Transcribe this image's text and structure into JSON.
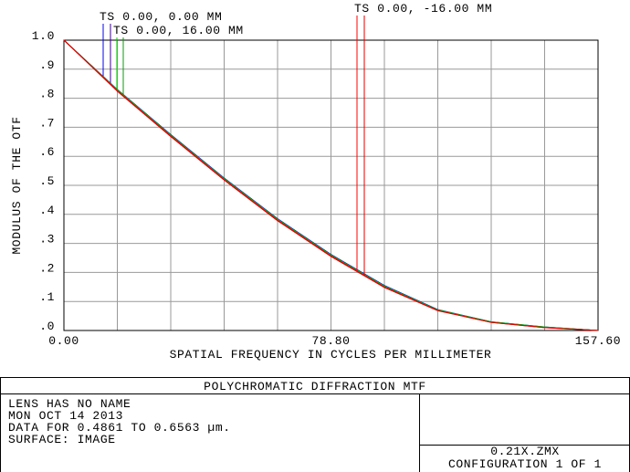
{
  "chart_data": {
    "type": "line",
    "x_label": "SPATIAL FREQUENCY IN CYCLES PER MILLIMETER",
    "y_label": "MODULUS OF THE OTF",
    "x": [
      0,
      15.76,
      31.52,
      47.28,
      63.04,
      78.8,
      94.56,
      110.32,
      126.08,
      141.84,
      157.6
    ],
    "series": [
      {
        "name": "TS 0.00, 0.00 MM",
        "color": "#0000ff",
        "s_color": "#3a0090",
        "values": [
          1.0,
          0.83,
          0.675,
          0.525,
          0.385,
          0.262,
          0.155,
          0.072,
          0.03,
          0.012,
          0.0
        ],
        "values_s": [
          1.0,
          0.828,
          0.672,
          0.522,
          0.382,
          0.259,
          0.152,
          0.07,
          0.029,
          0.011,
          0.0
        ]
      },
      {
        "name": "TS 0.00, 16.00 MM",
        "color": "#00cc00",
        "s_color": "#00a000",
        "values": [
          1.0,
          0.829,
          0.673,
          0.523,
          0.383,
          0.26,
          0.153,
          0.071,
          0.03,
          0.012,
          0.0
        ],
        "values_s": [
          1.0,
          0.827,
          0.671,
          0.521,
          0.381,
          0.258,
          0.151,
          0.07,
          0.029,
          0.011,
          0.0
        ]
      },
      {
        "name": "TS 0.00, -16.00 MM",
        "color": "#ff0000",
        "s_color": "#e00000",
        "values": [
          1.0,
          0.826,
          0.67,
          0.52,
          0.38,
          0.257,
          0.15,
          0.069,
          0.028,
          0.01,
          0.0
        ],
        "values_s": [
          1.0,
          0.824,
          0.668,
          0.518,
          0.378,
          0.255,
          0.148,
          0.068,
          0.028,
          0.01,
          0.0
        ]
      }
    ],
    "xlim": [
      0,
      157.6
    ],
    "xticks": [
      {
        "value": 0,
        "label": "0.00"
      },
      {
        "value": 78.8,
        "label": "78.80"
      },
      {
        "value": 157.6,
        "label": "157.60"
      }
    ],
    "xgrid": [
      15.76,
      31.52,
      47.28,
      63.04,
      94.56,
      110.32,
      126.08,
      141.84
    ],
    "ylim": [
      0,
      1
    ],
    "yticks": [
      {
        "value": 1.0,
        "label": "1.0"
      },
      {
        "value": 0.9,
        "label": ".9"
      },
      {
        "value": 0.8,
        "label": ".8"
      },
      {
        "value": 0.7,
        "label": ".7"
      },
      {
        "value": 0.6,
        "label": ".6"
      },
      {
        "value": 0.5,
        "label": ".5"
      },
      {
        "value": 0.4,
        "label": ".4"
      },
      {
        "value": 0.3,
        "label": ".3"
      },
      {
        "value": 0.2,
        "label": ".2"
      },
      {
        "value": 0.1,
        "label": ".1"
      },
      {
        "value": 0.0,
        "label": ".0"
      }
    ],
    "grid": true
  },
  "footer": {
    "title": "POLYCHROMATIC DIFFRACTION MTF",
    "info": [
      "LENS HAS NO NAME",
      "MON OCT 14 2013",
      "DATA FOR 0.4861 TO 0.6563 µm.",
      "SURFACE: IMAGE"
    ],
    "file": "0.21X.ZMX",
    "config": "CONFIGURATION 1 OF 1"
  }
}
